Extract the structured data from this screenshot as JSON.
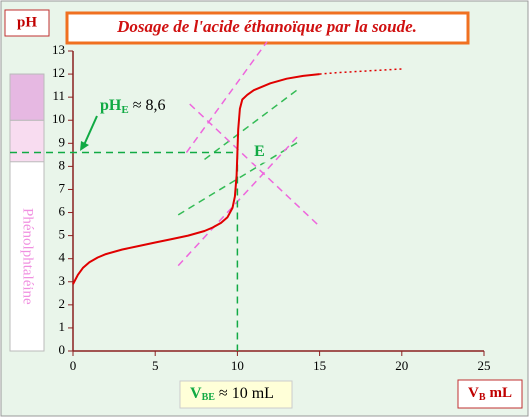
{
  "chart_data": {
    "type": "line",
    "title": "Dosage de l'acide éthanoïque  par la soude.",
    "y_label": "pH",
    "x_label": {
      "main": "V",
      "sub": "B",
      "rest": "mL"
    },
    "xlim": [
      0,
      25
    ],
    "ylim": [
      0,
      13
    ],
    "xticks": [
      0,
      5,
      10,
      15,
      20,
      25
    ],
    "yticks": [
      0,
      1,
      2,
      3,
      4,
      5,
      6,
      7,
      8,
      9,
      10,
      11,
      12,
      13
    ],
    "series": [
      {
        "color": "#e00000",
        "style": "solid",
        "x": [
          0,
          0.3,
          0.6,
          1,
          1.5,
          2,
          3,
          4,
          5,
          6,
          7,
          8,
          8.5,
          9,
          9.4,
          9.7,
          9.85,
          9.95,
          10,
          10.05,
          10.15,
          10.3,
          10.6,
          11,
          12,
          13,
          14,
          15
        ],
        "values": [
          2.9,
          3.3,
          3.6,
          3.85,
          4.05,
          4.2,
          4.4,
          4.55,
          4.7,
          4.85,
          5.0,
          5.2,
          5.35,
          5.55,
          5.8,
          6.2,
          6.7,
          7.6,
          8.6,
          9.6,
          10.5,
          10.9,
          11.1,
          11.3,
          11.6,
          11.8,
          11.92,
          12.0
        ]
      },
      {
        "color": "#e00000",
        "style": "dotted",
        "x": [
          15,
          16,
          17,
          18,
          19,
          20
        ],
        "values": [
          12.0,
          12.06,
          12.1,
          12.14,
          12.18,
          12.22
        ]
      }
    ],
    "construction_lines": [
      {
        "color": "#33bb55",
        "points": [
          [
            6.4,
            5.9
          ],
          [
            13.8,
            9.1
          ]
        ]
      },
      {
        "color": "#33bb55",
        "points": [
          [
            8.0,
            8.3
          ],
          [
            13.8,
            11.4
          ]
        ]
      },
      {
        "color": "#ee66dd",
        "points": [
          [
            6.4,
            3.7
          ],
          [
            13.8,
            9.4
          ]
        ]
      },
      {
        "color": "#ee66dd",
        "points": [
          [
            6.9,
            8.6
          ],
          [
            11.8,
            13.4
          ]
        ]
      },
      {
        "color": "#ee66dd",
        "points": [
          [
            7.1,
            10.7
          ],
          [
            15.0,
            5.4
          ]
        ]
      }
    ],
    "equivalence": {
      "x": 10,
      "y": 8.6,
      "point_label": "E",
      "color": "#11aa44",
      "ph_label": {
        "main": "pH",
        "sub": "E",
        "rest": " ≈ 8,6"
      },
      "volume_label": {
        "main": "V",
        "sub": "BE",
        "rest": " ≈ 10 mL"
      }
    },
    "indicator": {
      "label": "Phénolphtaléine",
      "range": [
        0,
        12
      ],
      "zones": [
        {
          "from": 8.2,
          "to": 10,
          "color": "#f8dcf0"
        },
        {
          "from": 10,
          "to": 12,
          "color": "#e6b8e2"
        }
      ]
    }
  }
}
